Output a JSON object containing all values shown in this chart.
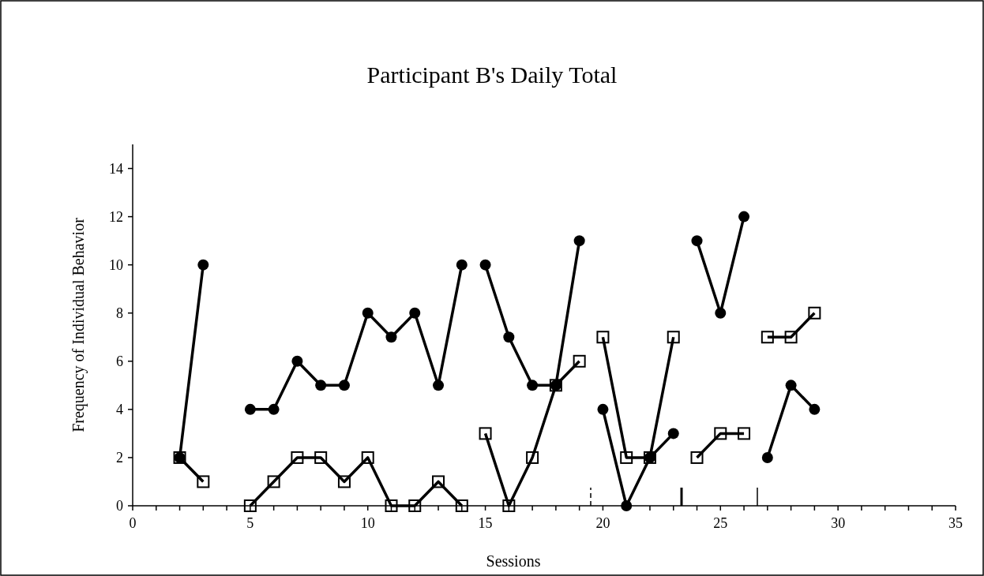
{
  "chart_data": {
    "type": "line",
    "title": "Participant B's Daily Total",
    "xlabel": "Sessions",
    "ylabel": "Frequency of Individual Behavior",
    "xlim": [
      0,
      35
    ],
    "ylim": [
      0,
      15
    ],
    "xticks": [
      0,
      {
        "value": 1,
        "label": null
      },
      {
        "value": 2,
        "label": null
      },
      {
        "value": 3,
        "label": null
      },
      {
        "value": 4,
        "label": null
      },
      5,
      {
        "value": 6,
        "label": null
      },
      {
        "value": 7,
        "label": null
      },
      {
        "value": 8,
        "label": null
      },
      {
        "value": 9,
        "label": null
      },
      10,
      {
        "value": 11,
        "label": null
      },
      {
        "value": 12,
        "label": null
      },
      {
        "value": 13,
        "label": null
      },
      {
        "value": 14,
        "label": null
      },
      15,
      {
        "value": 16,
        "label": null
      },
      {
        "value": 17,
        "label": null
      },
      {
        "value": 18,
        "label": null
      },
      {
        "value": 19,
        "label": null
      },
      20,
      {
        "value": 21,
        "label": null
      },
      {
        "value": 22,
        "label": null
      },
      {
        "value": 23,
        "label": null
      },
      {
        "value": 24,
        "label": null
      },
      25,
      {
        "value": 26,
        "label": null
      },
      {
        "value": 27,
        "label": null
      },
      {
        "value": 28,
        "label": null
      },
      {
        "value": 29,
        "label": null
      },
      30,
      {
        "value": 31,
        "label": null
      },
      {
        "value": 32,
        "label": null
      },
      {
        "value": 33,
        "label": null
      },
      {
        "value": 34,
        "label": null
      },
      35
    ],
    "yticks": [
      0,
      2,
      4,
      6,
      8,
      10,
      12,
      14
    ],
    "grid": false,
    "legend": false,
    "line_style": "solid",
    "series": [
      {
        "color": "#000000",
        "marker": "circle",
        "x": [
          2,
          3,
          4,
          5,
          6,
          7,
          8,
          9,
          10,
          11,
          12,
          13,
          14,
          14.5,
          15,
          16,
          17,
          18,
          19,
          19.5,
          20,
          21,
          22,
          23,
          23.5,
          24,
          25,
          26,
          26.5,
          27,
          28,
          29
        ],
        "values": [
          2,
          10,
          null,
          4,
          4,
          6,
          5,
          5,
          8,
          7,
          8,
          5,
          10,
          null,
          10,
          7,
          5,
          5,
          11,
          null,
          4,
          0,
          2,
          3,
          null,
          11,
          8,
          12,
          null,
          2,
          5,
          4
        ]
      },
      {
        "color": "#000000",
        "marker": "square",
        "x": [
          2,
          3,
          4,
          5,
          6,
          7,
          8,
          9,
          10,
          11,
          12,
          13,
          14,
          14.5,
          15,
          16,
          17,
          18,
          19,
          19.5,
          20,
          21,
          22,
          23,
          23.5,
          24,
          25,
          26,
          26.5,
          27,
          28,
          29
        ],
        "values": [
          2,
          1,
          null,
          0,
          1,
          2,
          2,
          1,
          2,
          0,
          0,
          1,
          0,
          null,
          3,
          0,
          2,
          5,
          6,
          null,
          7,
          2,
          2,
          7,
          null,
          2,
          3,
          3,
          null,
          7,
          7,
          8
        ]
      }
    ]
  }
}
